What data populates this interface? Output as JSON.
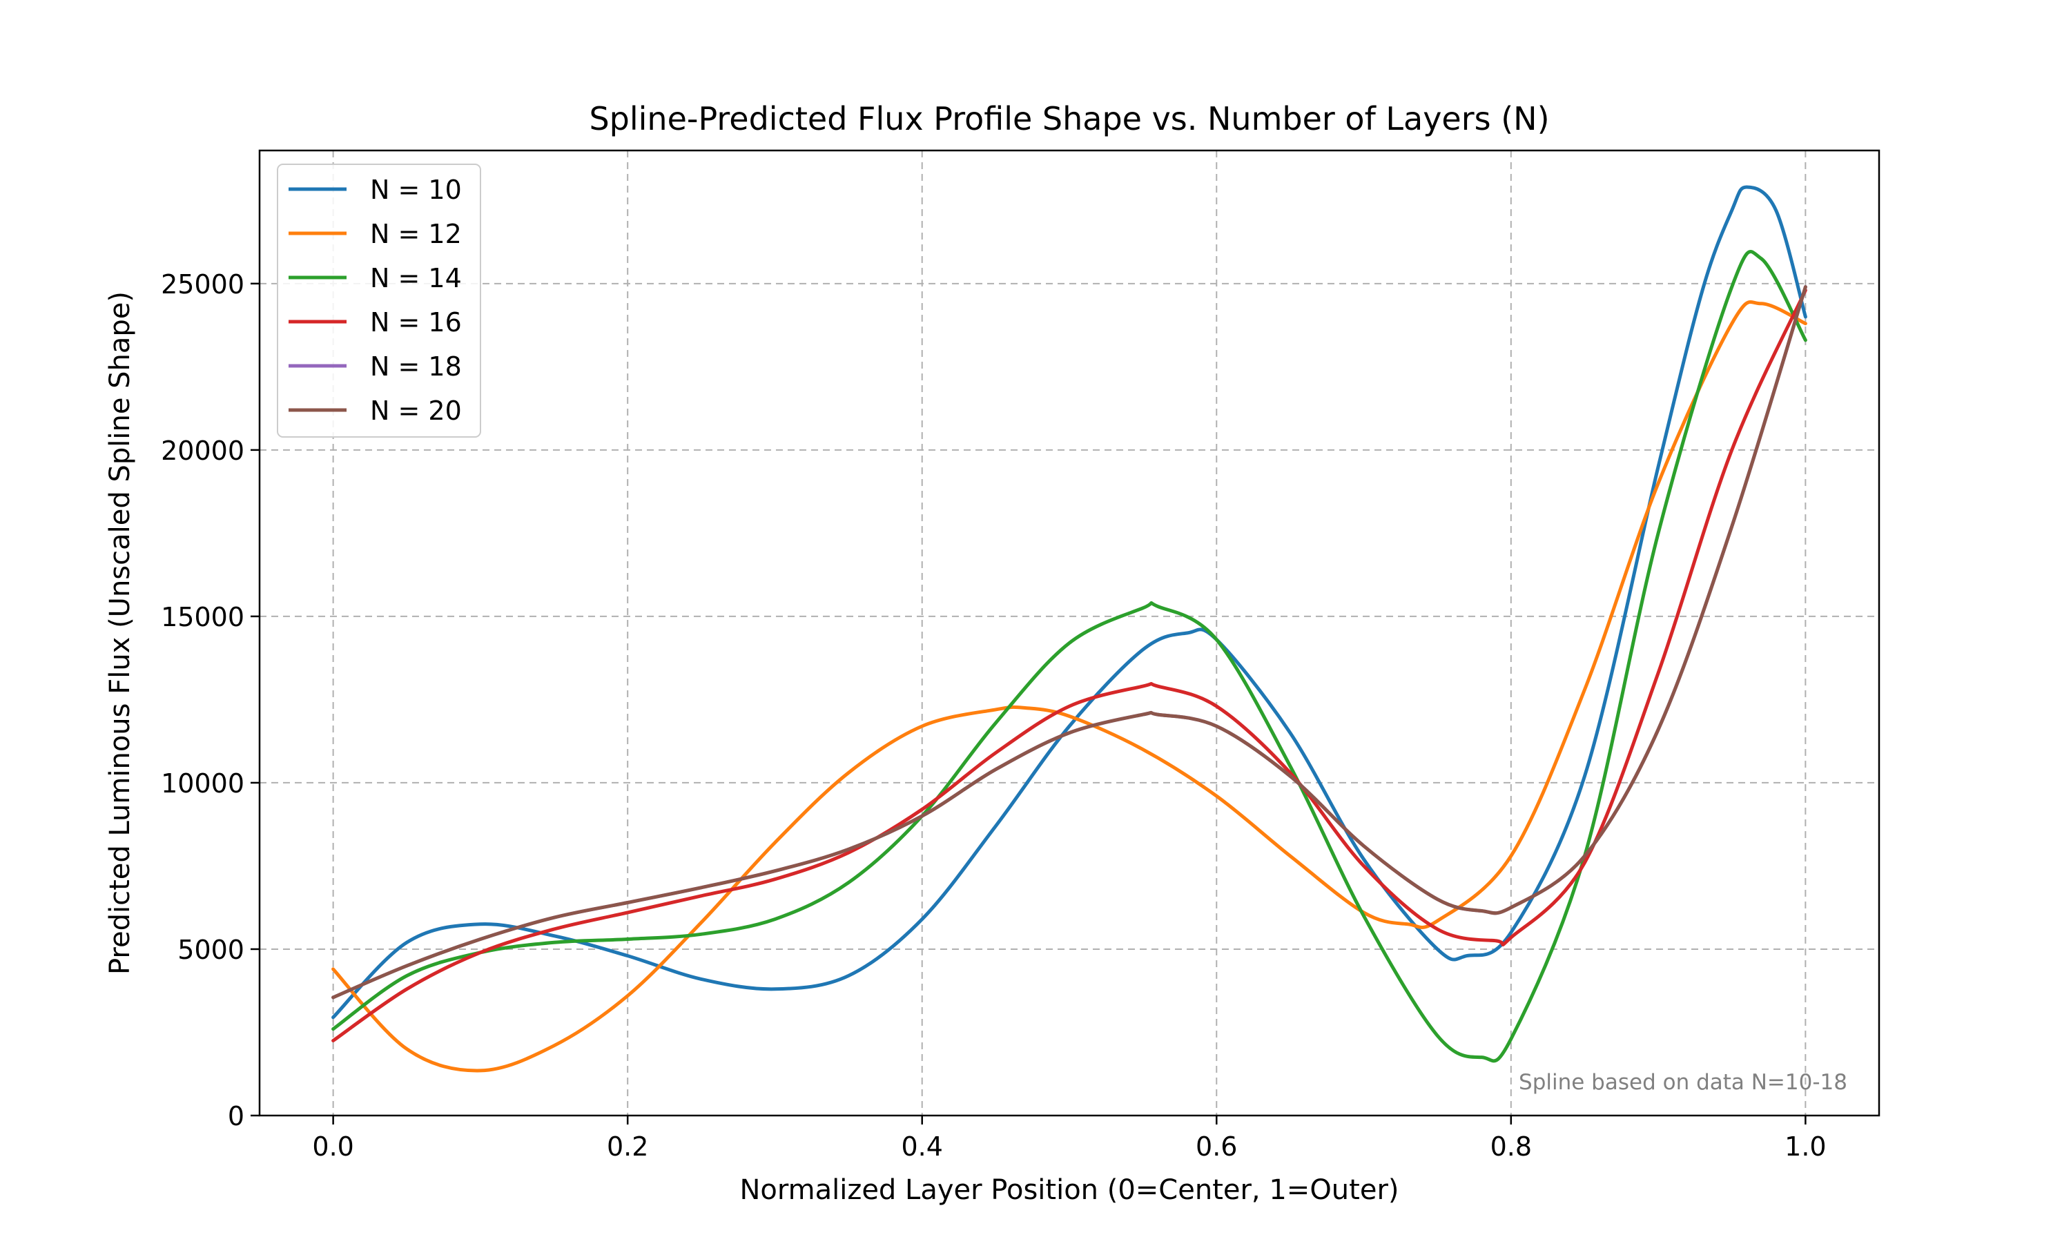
{
  "chart_data": {
    "type": "line",
    "title": "Spline-Predicted Flux Profile Shape vs. Number of Layers (N)",
    "xlabel": "Normalized Layer Position (0=Center, 1=Outer)",
    "ylabel": "Predicted Luminous Flux (Unscaled Spline Shape)",
    "xlim": [
      -0.05,
      1.05
    ],
    "ylim": [
      0,
      29000
    ],
    "grid": true,
    "legend_position": "upper-left",
    "annotation": "Spline based on data N=10-18",
    "x_ticks": [
      0.0,
      0.2,
      0.4,
      0.6,
      0.8,
      1.0
    ],
    "x_tick_labels": [
      "0.0",
      "0.2",
      "0.4",
      "0.6",
      "0.8",
      "1.0"
    ],
    "y_ticks": [
      0,
      5000,
      10000,
      15000,
      20000,
      25000
    ],
    "y_tick_labels": [
      "0",
      "5000",
      "10000",
      "15000",
      "20000",
      "25000"
    ],
    "x": [
      0.0,
      0.05,
      0.1,
      0.15,
      0.2,
      0.25,
      0.3,
      0.35,
      0.4,
      0.45,
      0.5,
      0.55,
      0.6,
      0.65,
      0.7,
      0.75,
      0.8,
      0.85,
      0.9,
      0.95,
      1.0
    ],
    "series": [
      {
        "name": "N = 10",
        "color": "#1f77b4",
        "x": [
          0.0,
          0.05,
          0.1,
          0.15,
          0.2,
          0.25,
          0.3,
          0.35,
          0.4,
          0.45,
          0.5,
          0.55,
          0.58,
          0.6,
          0.65,
          0.7,
          0.75,
          0.77,
          0.8,
          0.85,
          0.9,
          0.93,
          0.95,
          0.96,
          0.98,
          1.0
        ],
        "values": [
          2950,
          5200,
          5750,
          5400,
          4800,
          4100,
          3800,
          4200,
          5900,
          8700,
          11700,
          14000,
          14500,
          14300,
          11500,
          7700,
          5000,
          4800,
          5500,
          10200,
          19500,
          24800,
          27200,
          27900,
          27200,
          24000
        ]
      },
      {
        "name": "N = 12",
        "color": "#ff7f0e",
        "x": [
          0.0,
          0.05,
          0.1,
          0.15,
          0.2,
          0.25,
          0.3,
          0.35,
          0.4,
          0.45,
          0.47,
          0.5,
          0.55,
          0.6,
          0.65,
          0.7,
          0.73,
          0.75,
          0.8,
          0.85,
          0.9,
          0.95,
          0.97,
          1.0
        ],
        "values": [
          4400,
          2000,
          1350,
          2100,
          3600,
          5800,
          8200,
          10300,
          11700,
          12200,
          12250,
          12000,
          11000,
          9600,
          7800,
          6100,
          5750,
          5850,
          7800,
          12800,
          19000,
          23800,
          24400,
          23800
        ]
      },
      {
        "name": "N = 14",
        "color": "#2ca02c",
        "x": [
          0.0,
          0.05,
          0.1,
          0.15,
          0.2,
          0.25,
          0.3,
          0.35,
          0.4,
          0.45,
          0.5,
          0.55,
          0.56,
          0.6,
          0.65,
          0.7,
          0.75,
          0.78,
          0.8,
          0.85,
          0.9,
          0.95,
          0.97,
          1.0
        ],
        "values": [
          2600,
          4200,
          4900,
          5200,
          5300,
          5450,
          5900,
          7000,
          9000,
          11800,
          14200,
          15250,
          15300,
          14300,
          10500,
          6000,
          2400,
          1750,
          2300,
          7800,
          17500,
          24900,
          25750,
          23300
        ]
      },
      {
        "name": "N = 16",
        "color": "#d62728",
        "x": [
          0.0,
          0.05,
          0.1,
          0.15,
          0.2,
          0.25,
          0.3,
          0.35,
          0.4,
          0.45,
          0.5,
          0.55,
          0.56,
          0.6,
          0.65,
          0.7,
          0.75,
          0.79,
          0.8,
          0.85,
          0.9,
          0.95,
          1.0
        ],
        "values": [
          2250,
          3800,
          4900,
          5600,
          6100,
          6600,
          7100,
          7900,
          9200,
          10900,
          12300,
          12900,
          12900,
          12300,
          10300,
          7500,
          5600,
          5250,
          5350,
          7600,
          13300,
          20000,
          24800
        ]
      },
      {
        "name": "N = 18",
        "color": "#9467bd",
        "x": [
          0.0,
          0.05,
          0.1,
          0.15,
          0.2,
          0.25,
          0.3,
          0.35,
          0.4,
          0.45,
          0.5,
          0.55,
          0.56,
          0.6,
          0.65,
          0.7,
          0.75,
          0.78,
          0.8,
          0.85,
          0.9,
          0.95,
          1.0
        ],
        "values": [
          3550,
          4500,
          5300,
          5950,
          6400,
          6850,
          7350,
          8000,
          9000,
          10400,
          11500,
          12050,
          12050,
          11700,
          10200,
          8100,
          6500,
          6150,
          6250,
          7800,
          11600,
          17700,
          24900
        ]
      },
      {
        "name": "N = 20",
        "color": "#8c564b",
        "x": [
          0.0,
          0.05,
          0.1,
          0.15,
          0.2,
          0.25,
          0.3,
          0.35,
          0.4,
          0.45,
          0.5,
          0.55,
          0.56,
          0.6,
          0.65,
          0.7,
          0.75,
          0.78,
          0.8,
          0.85,
          0.9,
          0.95,
          1.0
        ],
        "values": [
          3550,
          4500,
          5300,
          5950,
          6400,
          6850,
          7350,
          8000,
          9000,
          10400,
          11500,
          12050,
          12050,
          11700,
          10200,
          8100,
          6500,
          6150,
          6250,
          7800,
          11600,
          17700,
          24900
        ]
      }
    ]
  }
}
